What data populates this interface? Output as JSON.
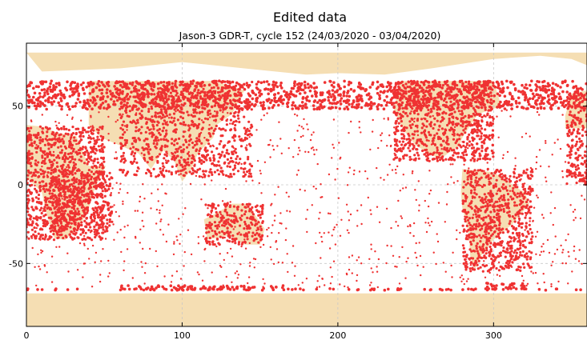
{
  "chart_data": {
    "type": "scatter",
    "title": "Edited data",
    "subtitle": "Jason-3 GDR-T, cycle 152 (24/03/2020 - 03/04/2020)",
    "xlabel": "",
    "ylabel": "",
    "xlim": [
      0,
      360
    ],
    "ylim": [
      -90,
      90
    ],
    "x_ticks": [
      0,
      100,
      200,
      300
    ],
    "y_ticks": [
      50,
      0,
      -50
    ],
    "x_tick_labels": [
      "0",
      "100",
      "200",
      "300"
    ],
    "y_tick_labels": [
      "50",
      "0",
      "-50"
    ],
    "grid": true,
    "series": [
      {
        "color": "#ef3232",
        "description_bands": [
          {
            "lon": [
              0,
              360
            ],
            "lat": [
              48,
              66
            ]
          },
          {
            "lon": [
              60,
              165
            ],
            "lat": [
              -67,
              -64
            ]
          },
          {
            "lon": [
              295,
              320
            ],
            "lat": [
              -67,
              -62
            ]
          },
          {
            "lon": [
              0,
              360
            ],
            "lat": [
              -67,
              -66
            ]
          }
        ],
        "land_regions": [
          {
            "lon": [
              0,
              50
            ],
            "lat": [
              -35,
              37
            ]
          },
          {
            "lon": [
              15,
              55
            ],
            "lat": [
              -30,
              10
            ]
          },
          {
            "lon": [
              60,
              145
            ],
            "lat": [
              5,
              66
            ]
          },
          {
            "lon": [
              115,
              152
            ],
            "lat": [
              -38,
              -12
            ]
          },
          {
            "lon": [
              236,
              300
            ],
            "lat": [
              15,
              66
            ]
          },
          {
            "lon": [
              280,
              325
            ],
            "lat": [
              -55,
              10
            ]
          },
          {
            "lon": [
              347,
              360
            ],
            "lat": [
              0,
              60
            ]
          }
        ]
      }
    ],
    "background_land_color": "#f5deb3"
  }
}
